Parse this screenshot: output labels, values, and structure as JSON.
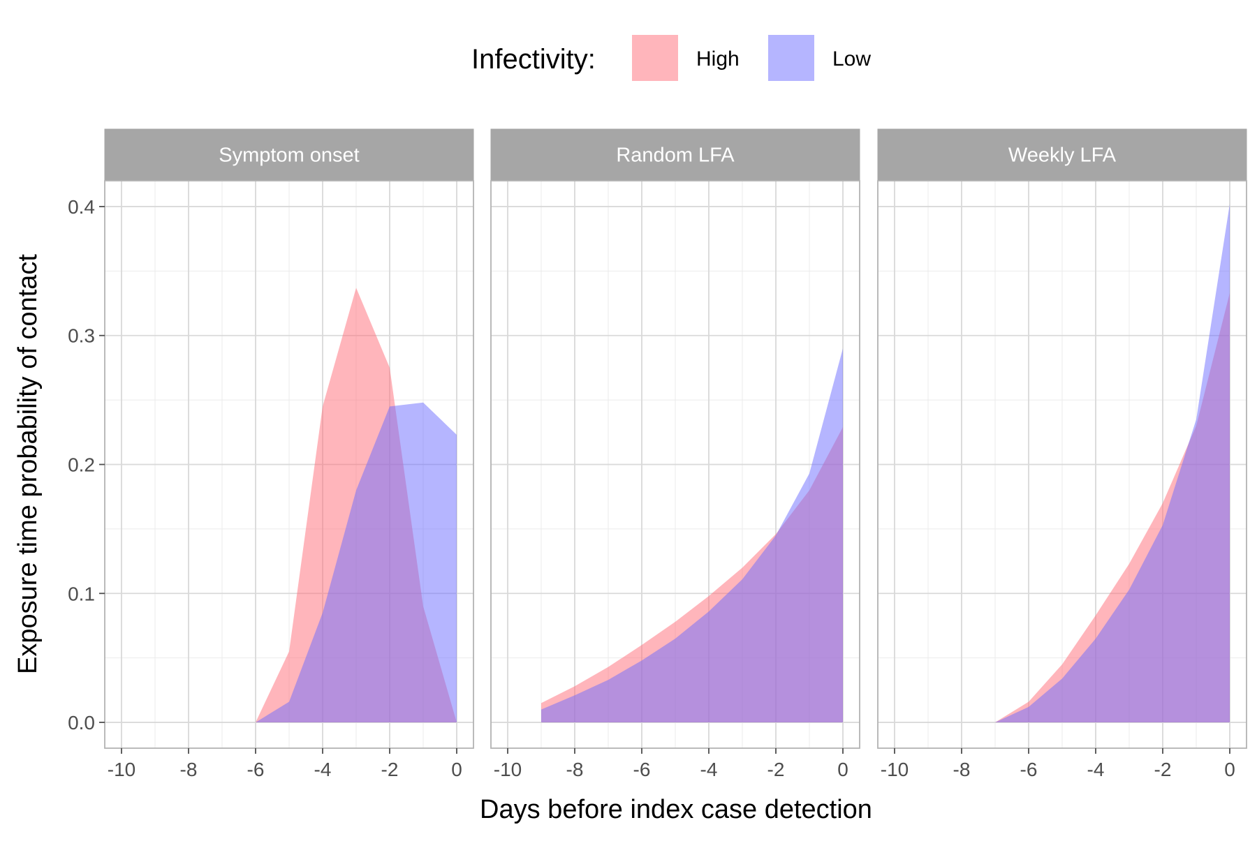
{
  "chart_data": {
    "type": "area",
    "xlabel": "Days before index case detection",
    "ylabel": "Exposure time probability of contact",
    "xlim": [
      -10.5,
      0.5
    ],
    "ylim": [
      -0.02,
      0.42
    ],
    "x_ticks": [
      -10,
      -8,
      -6,
      -4,
      -2,
      0
    ],
    "x_tick_labels": [
      "-10",
      "-8",
      "-6",
      "-4",
      "-2",
      "0"
    ],
    "y_ticks": [
      0,
      0.1,
      0.2,
      0.3,
      0.4
    ],
    "y_tick_labels": [
      "0.0",
      "0.1",
      "0.2",
      "0.3",
      "0.4"
    ],
    "grid": true,
    "legend": {
      "title": "Infectivity:",
      "position": "top",
      "entries": [
        {
          "name": "High",
          "color": "#ff6b78"
        },
        {
          "name": "Low",
          "color": "#6b6bff"
        }
      ]
    },
    "fill_opacity": 0.5,
    "panels": [
      {
        "title": "Symptom onset",
        "series": [
          {
            "name": "High",
            "x": [
              -6,
              -5,
              -4,
              -3,
              -2,
              -1,
              0
            ],
            "y": [
              0.0,
              0.055,
              0.245,
              0.337,
              0.275,
              0.09,
              0.0
            ]
          },
          {
            "name": "Low",
            "x": [
              -6,
              -5,
              -4,
              -3,
              -2,
              -1,
              0
            ],
            "y": [
              0.0,
              0.016,
              0.085,
              0.18,
              0.245,
              0.248,
              0.223
            ]
          }
        ]
      },
      {
        "title": "Random LFA",
        "series": [
          {
            "name": "High",
            "x": [
              -9,
              -8,
              -7,
              -6,
              -5,
              -4,
              -3,
              -2,
              -1,
              0
            ],
            "y": [
              0.015,
              0.028,
              0.043,
              0.06,
              0.078,
              0.098,
              0.12,
              0.146,
              0.18,
              0.229
            ]
          },
          {
            "name": "Low",
            "x": [
              -9,
              -8,
              -7,
              -6,
              -5,
              -4,
              -3,
              -2,
              -1,
              0
            ],
            "y": [
              0.01,
              0.021,
              0.033,
              0.048,
              0.065,
              0.086,
              0.111,
              0.145,
              0.193,
              0.29
            ]
          }
        ]
      },
      {
        "title": "Weekly LFA",
        "series": [
          {
            "name": "High",
            "x": [
              -7,
              -6,
              -5,
              -4,
              -3,
              -2,
              -1,
              0
            ],
            "y": [
              0.0,
              0.016,
              0.045,
              0.083,
              0.123,
              0.17,
              0.23,
              0.333
            ]
          },
          {
            "name": "Low",
            "x": [
              -7,
              -6,
              -5,
              -4,
              -3,
              -2,
              -1,
              0
            ],
            "y": [
              0.0,
              0.012,
              0.034,
              0.065,
              0.103,
              0.153,
              0.235,
              0.402
            ]
          }
        ]
      }
    ]
  }
}
